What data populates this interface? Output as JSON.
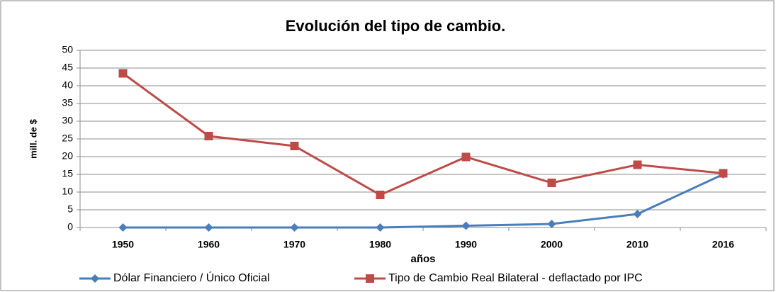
{
  "chart_data": {
    "type": "line",
    "title": "Evolución del tipo de cambio.",
    "x_label": "años",
    "y_label": "mill. de $",
    "categories": [
      "1950",
      "1960",
      "1970",
      "1980",
      "1990",
      "2000",
      "2010",
      "2016"
    ],
    "series": [
      {
        "name": "Dólar Financiero / Único Oficial",
        "color": "#4a7ebb",
        "marker": "diamond",
        "values": [
          0,
          0,
          0,
          0,
          0.5,
          1,
          3.8,
          15
        ]
      },
      {
        "name": "Tipo de Cambio Real Bilateral - deflactado por IPC",
        "color": "#be4b48",
        "marker": "square",
        "values": [
          43.5,
          25.8,
          23,
          9.2,
          19.9,
          12.6,
          17.7,
          15.3
        ]
      }
    ],
    "ylim": [
      0,
      50
    ],
    "yticks": [
      0,
      5,
      10,
      15,
      20,
      25,
      30,
      35,
      40,
      45,
      50
    ],
    "grid": true,
    "legend": "bottom"
  }
}
